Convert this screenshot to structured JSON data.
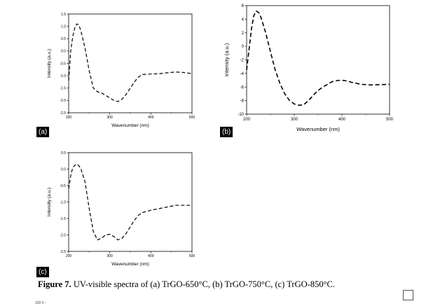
{
  "figure": {
    "caption_label": "Figure 7.",
    "caption_text": " UV-visible spectra of (a) TrGO-650°C, (b) TrGO-750°C, (c) TrGO-850°C.",
    "page_marker": "100 5 ↑"
  },
  "chart_data": [
    {
      "id": "a",
      "panel_label": "(a)",
      "type": "line",
      "xlabel": "Wavenumber (nm)",
      "ylabel": "Intensity (a.u.)",
      "xlim": [
        200,
        500
      ],
      "ylim": [
        -2.5,
        1.5
      ],
      "xticks": [
        200,
        300,
        400,
        500
      ],
      "yticks": [
        -2.5,
        -2.0,
        -1.5,
        -1.0,
        -0.5,
        0.0,
        0.5,
        1.0,
        1.5
      ],
      "ytick_labels": [
        "-2.5",
        "-2.0",
        "-1.5",
        "-1.0",
        "-0.5",
        "0.0",
        "0.5",
        "1.0",
        "1.5"
      ],
      "grid": false,
      "line_style": "dashed",
      "series": [
        {
          "x": [
            200,
            205,
            210,
            215,
            220,
            225,
            230,
            240,
            250,
            260,
            270,
            280,
            290,
            300,
            310,
            320,
            330,
            340,
            350,
            360,
            370,
            380,
            400,
            420,
            440,
            460,
            480,
            500
          ],
          "y": [
            -1.2,
            0.0,
            0.6,
            0.95,
            1.1,
            1.05,
            0.8,
            0.1,
            -0.8,
            -1.5,
            -1.65,
            -1.7,
            -1.8,
            -1.9,
            -2.0,
            -2.05,
            -1.95,
            -1.75,
            -1.5,
            -1.25,
            -1.05,
            -0.95,
            -0.93,
            -0.92,
            -0.88,
            -0.85,
            -0.87,
            -0.92
          ]
        }
      ]
    },
    {
      "id": "b",
      "panel_label": "(b)",
      "type": "line",
      "xlabel": "Wavenumber (nm)",
      "ylabel": "Intensity (a.u.)",
      "xlim": [
        200,
        500
      ],
      "ylim": [
        -10,
        6
      ],
      "xticks": [
        200,
        300,
        400,
        500
      ],
      "yticks": [
        -10,
        -8,
        -6,
        -4,
        -2,
        0,
        2,
        4,
        6
      ],
      "ytick_labels": [
        "-10",
        "-8",
        "-6",
        "-4",
        "-2",
        "0",
        "2",
        "4",
        "6"
      ],
      "grid": false,
      "line_style": "dashed",
      "series": [
        {
          "x": [
            200,
            205,
            210,
            215,
            220,
            225,
            230,
            240,
            250,
            260,
            270,
            280,
            290,
            300,
            310,
            320,
            330,
            340,
            350,
            360,
            370,
            380,
            390,
            400,
            410,
            420,
            440,
            460,
            480,
            500
          ],
          "y": [
            -3.5,
            -0.5,
            2.5,
            4.5,
            5.2,
            5.0,
            4.3,
            2.0,
            -0.8,
            -3.5,
            -5.5,
            -7.0,
            -8.0,
            -8.5,
            -8.7,
            -8.6,
            -8.0,
            -7.2,
            -6.5,
            -6.0,
            -5.6,
            -5.2,
            -5.05,
            -5.0,
            -5.1,
            -5.3,
            -5.6,
            -5.7,
            -5.65,
            -5.6
          ]
        }
      ]
    },
    {
      "id": "c",
      "panel_label": "(c)",
      "type": "line",
      "xlabel": "Wavenumber (nm)",
      "ylabel": "Intensity (a.u.)",
      "xlim": [
        200,
        500
      ],
      "ylim": [
        -2.5,
        0.5
      ],
      "xticks": [
        200,
        300,
        400,
        500
      ],
      "yticks": [
        -2.5,
        -2.0,
        -1.5,
        -1.0,
        -0.5,
        0.0,
        0.5
      ],
      "ytick_labels": [
        "-2.5",
        "-2.0",
        "-1.5",
        "-1.0",
        "-0.5",
        "0.0",
        "0.5"
      ],
      "grid": false,
      "line_style": "dashed",
      "series": [
        {
          "x": [
            200,
            205,
            210,
            215,
            220,
            225,
            230,
            240,
            250,
            260,
            270,
            280,
            290,
            300,
            310,
            320,
            330,
            340,
            350,
            360,
            370,
            380,
            400,
            420,
            440,
            460,
            480,
            500
          ],
          "y": [
            -0.6,
            -0.2,
            0.05,
            0.12,
            0.15,
            0.1,
            0.0,
            -0.4,
            -1.2,
            -1.9,
            -2.15,
            -2.1,
            -2.0,
            -1.98,
            -2.05,
            -2.15,
            -2.1,
            -1.95,
            -1.75,
            -1.55,
            -1.4,
            -1.32,
            -1.25,
            -1.2,
            -1.15,
            -1.1,
            -1.1,
            -1.1
          ]
        }
      ]
    }
  ]
}
